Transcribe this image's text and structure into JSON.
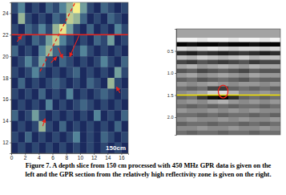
{
  "chart_data": [
    {
      "type": "heatmap",
      "xlim": [
        0,
        17
      ],
      "ylim": [
        11,
        25
      ],
      "xticks": [
        0,
        2,
        4,
        6,
        8,
        10,
        12,
        14,
        16
      ],
      "yticks": [
        12,
        14,
        16,
        18,
        20,
        22,
        24
      ],
      "text": "150cm",
      "profile_y": 22,
      "dashed_line": {
        "x": [
          4.2,
          9.3
        ],
        "y": [
          18.6,
          25
        ]
      },
      "x": [
        0,
        1,
        2,
        3,
        4,
        5,
        6,
        7,
        8,
        9,
        10,
        11,
        12,
        13,
        14,
        15,
        16
      ],
      "y": [
        24,
        23,
        22,
        21,
        20,
        19,
        18,
        17,
        16,
        15,
        14,
        13,
        12,
        11
      ],
      "cells": [
        [
          0.3,
          0.5,
          0.2,
          0.3,
          0.2,
          0.4,
          0.3,
          0.5,
          0.7,
          0.95,
          0.6,
          0.3,
          0.2,
          0.4,
          0.3,
          0.2,
          0.3
        ],
        [
          0.2,
          0.7,
          0.3,
          0.2,
          0.3,
          0.2,
          0.4,
          0.3,
          0.8,
          0.7,
          0.4,
          0.2,
          0.3,
          0.2,
          0.4,
          0.3,
          0.2
        ],
        [
          0.3,
          0.2,
          0.4,
          0.3,
          0.5,
          0.3,
          0.7,
          0.9,
          0.6,
          0.3,
          0.2,
          0.4,
          0.2,
          0.3,
          0.2,
          0.5,
          0.3
        ],
        [
          0.2,
          0.3,
          0.2,
          0.4,
          0.3,
          0.6,
          0.8,
          0.5,
          0.3,
          0.2,
          0.3,
          0.2,
          0.4,
          0.3,
          0.6,
          0.2,
          0.3
        ],
        [
          0.4,
          0.2,
          0.3,
          0.2,
          0.5,
          0.7,
          0.4,
          0.3,
          0.2,
          0.3,
          0.5,
          0.3,
          0.2,
          0.3,
          0.2,
          0.3,
          0.2
        ],
        [
          0.2,
          0.3,
          0.5,
          0.3,
          0.6,
          0.3,
          0.2,
          0.4,
          0.3,
          0.2,
          0.3,
          0.2,
          0.3,
          0.5,
          0.3,
          0.2,
          0.4
        ],
        [
          0.3,
          0.2,
          0.3,
          0.5,
          0.3,
          0.2,
          0.3,
          0.2,
          0.3,
          0.4,
          0.2,
          0.3,
          0.2,
          0.3,
          0.2,
          0.6,
          0.3
        ],
        [
          0.2,
          0.4,
          0.2,
          0.3,
          0.2,
          0.3,
          0.4,
          0.3,
          0.2,
          0.3,
          0.2,
          0.4,
          0.3,
          0.2,
          0.7,
          0.3,
          0.2
        ],
        [
          0.3,
          0.2,
          0.3,
          0.2,
          0.4,
          0.2,
          0.3,
          0.2,
          0.5,
          0.2,
          0.3,
          0.2,
          0.3,
          0.4,
          0.3,
          0.2,
          0.3
        ],
        [
          0.2,
          0.3,
          0.2,
          0.3,
          0.2,
          0.5,
          0.2,
          0.3,
          0.2,
          0.3,
          0.4,
          0.3,
          0.2,
          0.3,
          0.2,
          0.3,
          0.2
        ],
        [
          0.4,
          0.2,
          0.3,
          0.6,
          0.3,
          0.2,
          0.3,
          0.2,
          0.3,
          0.2,
          0.3,
          0.2,
          0.5,
          0.2,
          0.3,
          0.2,
          0.4
        ],
        [
          0.2,
          0.3,
          0.2,
          0.3,
          0.7,
          0.3,
          0.2,
          0.4,
          0.2,
          0.3,
          0.2,
          0.3,
          0.2,
          0.3,
          0.2,
          0.4,
          0.2
        ],
        [
          0.3,
          0.2,
          0.4,
          0.2,
          0.3,
          0.2,
          0.3,
          0.2,
          0.3,
          0.5,
          0.2,
          0.3,
          0.2,
          0.4,
          0.3,
          0.2,
          0.3
        ],
        [
          0.2,
          0.3,
          0.2,
          0.3,
          0.2,
          0.3,
          0.2,
          0.3,
          0.2,
          0.3,
          0.2,
          0.3,
          0.2,
          0.3,
          0.2,
          0.3,
          0.2
        ]
      ]
    },
    {
      "type": "heatmap",
      "tick_labels": "y",
      "xlim": [
        0,
        10
      ],
      "ylim": [
        2.4,
        0
      ],
      "yticks": [
        0.5,
        {
          "value": 1,
          "label": "1.0"
        },
        1.5,
        {
          "value": 2,
          "label": "2.0"
        }
      ],
      "profile_depth": 1.5,
      "target": {
        "x": 4.5,
        "y": 1.42
      },
      "x": [
        0,
        1,
        2,
        3,
        4,
        5,
        6,
        7,
        8,
        9
      ],
      "y": [
        0.2,
        0.3,
        0.4,
        0.5,
        0.6,
        0.7,
        0.8,
        0.9,
        1.0,
        1.1,
        1.2,
        1.3,
        1.4,
        1.5,
        1.6,
        1.7,
        1.8,
        1.9,
        2.0,
        2.1,
        2.2,
        2.3
      ],
      "cells": [
        [
          0.9,
          0.9,
          0.8,
          0.9,
          0.9,
          0.8,
          0.9,
          0.9,
          0.8,
          0.9
        ],
        [
          -0.9,
          -0.8,
          -0.9,
          -0.9,
          -0.8,
          -0.9,
          -0.9,
          -0.8,
          -0.9,
          -0.9
        ],
        [
          0.7,
          0.6,
          0.7,
          0.8,
          0.7,
          0.6,
          0.7,
          0.7,
          0.6,
          0.7
        ],
        [
          -0.6,
          -0.7,
          -0.5,
          -0.6,
          -0.7,
          -0.6,
          -0.5,
          -0.6,
          -0.7,
          -0.6
        ],
        [
          0.5,
          0.4,
          0.6,
          0.5,
          0.4,
          0.5,
          0.6,
          0.4,
          0.5,
          0.5
        ],
        [
          -0.4,
          -0.5,
          -0.3,
          -0.4,
          -0.5,
          -0.4,
          -0.3,
          -0.5,
          -0.4,
          -0.4
        ],
        [
          0.3,
          0.4,
          0.2,
          0.3,
          0.4,
          0.3,
          0.2,
          0.4,
          0.3,
          0.3
        ],
        [
          -0.3,
          -0.2,
          -0.4,
          -0.3,
          -0.2,
          -0.3,
          -0.4,
          -0.2,
          -0.3,
          -0.3
        ],
        [
          0.2,
          0.3,
          0.1,
          0.2,
          0.3,
          0.2,
          0.1,
          0.3,
          0.2,
          0.2
        ],
        [
          -0.2,
          -0.1,
          -0.3,
          -0.2,
          -0.1,
          -0.2,
          -0.3,
          -0.1,
          -0.2,
          -0.2
        ],
        [
          0.2,
          0.1,
          0.2,
          0.3,
          0.2,
          0.1,
          0.2,
          0.2,
          0.1,
          0.2
        ],
        [
          -0.1,
          -0.2,
          -0.1,
          -0.4,
          -0.5,
          -0.2,
          -0.1,
          -0.2,
          -0.1,
          -0.2
        ],
        [
          0.1,
          0.2,
          0.3,
          0.6,
          0.7,
          0.4,
          0.1,
          0.1,
          0.2,
          0.1
        ],
        [
          -0.2,
          -0.1,
          -0.5,
          -0.8,
          -0.9,
          -0.6,
          -0.2,
          -0.1,
          -0.2,
          -0.1
        ],
        [
          0.1,
          0.2,
          0.1,
          0.3,
          0.4,
          0.2,
          0.1,
          0.2,
          0.1,
          0.2
        ],
        [
          -0.1,
          -0.2,
          -0.1,
          -0.2,
          -0.1,
          -0.2,
          -0.1,
          -0.1,
          -0.2,
          -0.1
        ],
        [
          0.2,
          0.1,
          0.1,
          0.2,
          0.1,
          0.2,
          0.1,
          0.2,
          0.1,
          0.1
        ],
        [
          -0.1,
          -0.1,
          -0.2,
          -0.1,
          -0.2,
          -0.1,
          -0.1,
          -0.2,
          -0.1,
          -0.2
        ],
        [
          0.1,
          0.2,
          0.1,
          0.1,
          0.2,
          0.1,
          0.2,
          0.1,
          0.1,
          0.2
        ],
        [
          -0.2,
          -0.1,
          -0.1,
          -0.2,
          -0.1,
          -0.1,
          -0.2,
          -0.1,
          -0.2,
          -0.1
        ],
        [
          0.1,
          0.1,
          0.2,
          0.1,
          0.1,
          0.2,
          0.1,
          0.1,
          0.2,
          0.1
        ],
        [
          -0.1,
          -0.2,
          -0.1,
          -0.1,
          -0.2,
          -0.1,
          -0.1,
          -0.2,
          -0.1,
          -0.1
        ]
      ]
    }
  ],
  "caption_label": "Figure 7.",
  "caption": "A depth slice from 150 cm processed with 450 MHz GPR data is given on the left and the GPR section from the relatively high reflectivity zone is given on the right."
}
